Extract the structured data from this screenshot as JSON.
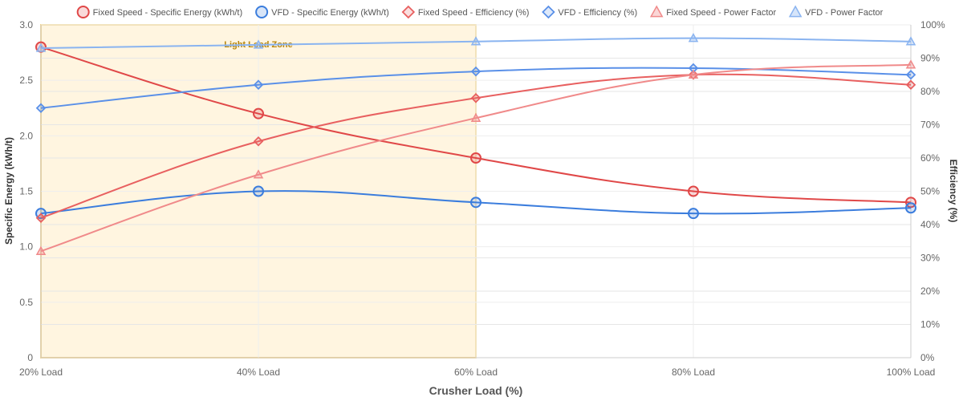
{
  "chart_data": {
    "type": "line",
    "categories": [
      "20% Load",
      "40% Load",
      "60% Load",
      "80% Load",
      "100% Load"
    ],
    "xlabel": "Crusher Load (%)",
    "y_left": {
      "label": "Specific Energy (kWh/t)",
      "range": [
        0,
        3
      ],
      "ticks": [
        "0",
        "0.5",
        "1.0",
        "1.5",
        "2.0",
        "2.5",
        "3.0"
      ]
    },
    "y_right": {
      "label": "Efficiency (%)",
      "range": [
        0,
        100
      ],
      "ticks": [
        "0%",
        "10%",
        "20%",
        "30%",
        "40%",
        "50%",
        "60%",
        "70%",
        "80%",
        "90%",
        "100%"
      ]
    },
    "grid": true,
    "legend_position": "top",
    "annotation": {
      "label": "Light Load Zone",
      "from_category": 0,
      "to_category": 2,
      "fill": "#fff5e0",
      "border": "#f0b429"
    },
    "series": [
      {
        "name": "Fixed Speed - Specific Energy (kWh/t)",
        "axis": "left",
        "values": [
          2.8,
          2.2,
          1.8,
          1.5,
          1.4
        ],
        "color": "#e04848",
        "marker": "circle"
      },
      {
        "name": "VFD - Specific Energy (kWh/t)",
        "axis": "left",
        "values": [
          1.3,
          1.5,
          1.4,
          1.3,
          1.35
        ],
        "color": "#3b7ddd",
        "marker": "circle"
      },
      {
        "name": "Fixed Speed - Efficiency (%)",
        "axis": "right",
        "values": [
          42,
          65,
          78,
          85,
          82
        ],
        "color": "#e86060",
        "marker": "diamond"
      },
      {
        "name": "VFD - Efficiency (%)",
        "axis": "right",
        "values": [
          75,
          82,
          86,
          87,
          85
        ],
        "color": "#5a90e8",
        "marker": "diamond"
      },
      {
        "name": "Fixed Speed - Power Factor",
        "axis": "right",
        "values": [
          32,
          55,
          72,
          85,
          88
        ],
        "color": "#f08a8a",
        "marker": "triangle"
      },
      {
        "name": "VFD - Power Factor",
        "axis": "right",
        "values": [
          93,
          94,
          95,
          96,
          95
        ],
        "color": "#8ab4f0",
        "marker": "triangle"
      }
    ]
  }
}
